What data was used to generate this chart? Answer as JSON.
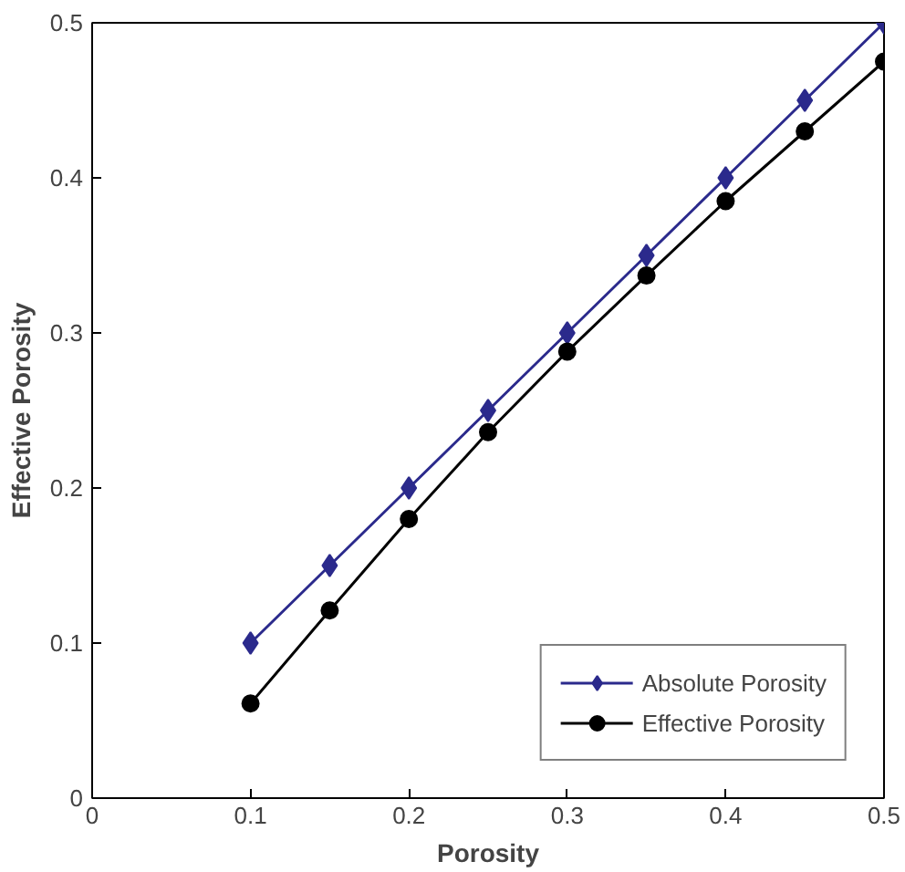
{
  "chart_data": {
    "type": "line",
    "xlabel": "Porosity",
    "ylabel": "Effective Porosity",
    "x": [
      0.1,
      0.15,
      0.2,
      0.25,
      0.3,
      0.35,
      0.4,
      0.45,
      0.5
    ],
    "series": [
      {
        "name": "Absolute Porosity",
        "color": "#2b2a8c",
        "marker": "diamond",
        "values": [
          0.1,
          0.15,
          0.2,
          0.25,
          0.3,
          0.35,
          0.4,
          0.45,
          0.5
        ]
      },
      {
        "name": "Effective Porosity",
        "color": "#000000",
        "marker": "circle",
        "values": [
          0.061,
          0.121,
          0.18,
          0.236,
          0.288,
          0.337,
          0.385,
          0.43,
          0.475
        ]
      }
    ],
    "xlim": [
      0,
      0.5
    ],
    "ylim": [
      0,
      0.5
    ],
    "xticks": [
      0,
      0.1,
      0.2,
      0.3,
      0.4,
      0.5
    ],
    "yticks": [
      0,
      0.1,
      0.2,
      0.3,
      0.4,
      0.5
    ],
    "grid": false,
    "legend": "bottom right",
    "line_style": "solid"
  }
}
